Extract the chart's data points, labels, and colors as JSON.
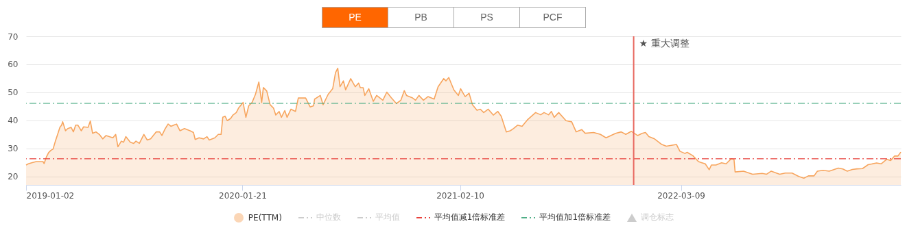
{
  "chart_data": {
    "type": "area",
    "legend": "bottom",
    "grid": "y",
    "line_style": "solid",
    "ylim": [
      17,
      70
    ],
    "yticks": [
      20,
      30,
      40,
      50,
      60,
      70
    ],
    "xlim": [
      "2019-01-02",
      "2023-04-03"
    ],
    "xticks": [
      "2019-01-02",
      "2020-01-21",
      "2021-02-10",
      "2022-03-09"
    ],
    "annotations": [
      "PE",
      "PB",
      "PS",
      "PCF",
      "中位数",
      "平均值",
      "调仓标志"
    ],
    "ref_lines": [
      {
        "axis": "y",
        "value": 26.3,
        "label": "平均值减1倍标准差",
        "color": "#e8413c",
        "line_style": "dashed"
      },
      {
        "axis": "y",
        "value": 46.1,
        "label": "平均值加1倍标准差",
        "color": "#4fae86",
        "line_style": "dashed"
      },
      {
        "axis": "x",
        "value": "2021-12-15",
        "label": "★ 重大调整",
        "color": "#e8675f",
        "line_style": "solid"
      }
    ],
    "series": [
      {
        "name": "PE(TTM)",
        "color": "#f7a55e",
        "x": [
          "2019-01-02",
          "2019-01-06",
          "2019-01-12",
          "2019-01-20",
          "2019-02-01",
          "2019-02-03",
          "2019-02-07",
          "2019-02-11",
          "2019-02-15",
          "2019-02-19",
          "2019-02-23",
          "2019-02-27",
          "2019-03-03",
          "2019-03-06",
          "2019-03-08",
          "2019-03-13",
          "2019-03-17",
          "2019-03-23",
          "2019-03-27",
          "2019-03-31",
          "2019-04-04",
          "2019-04-10",
          "2019-04-14",
          "2019-04-22",
          "2019-04-26",
          "2019-04-30",
          "2019-05-06",
          "2019-05-12",
          "2019-05-18",
          "2019-05-24",
          "2019-06-05",
          "2019-06-10",
          "2019-06-14",
          "2019-06-20",
          "2019-06-24",
          "2019-06-28",
          "2019-07-06",
          "2019-07-12",
          "2019-07-16",
          "2019-07-22",
          "2019-07-30",
          "2019-08-05",
          "2019-08-11",
          "2019-08-21",
          "2019-08-27",
          "2019-08-31",
          "2019-09-06",
          "2019-09-11",
          "2019-09-16",
          "2019-09-26",
          "2019-10-02",
          "2019-10-10",
          "2019-10-20",
          "2019-10-26",
          "2019-10-29",
          "2019-11-05",
          "2019-11-13",
          "2019-11-19",
          "2019-11-23",
          "2019-12-03",
          "2019-12-09",
          "2019-12-14",
          "2019-12-17",
          "2019-12-21",
          "2019-12-25",
          "2019-12-31",
          "2020-01-04",
          "2020-01-10",
          "2020-01-14",
          "2020-01-22",
          "2020-01-27",
          "2020-02-01",
          "2020-02-07",
          "2020-02-13",
          "2020-02-19",
          "2020-02-24",
          "2020-02-27",
          "2020-03-04",
          "2020-03-10",
          "2020-03-16",
          "2020-03-20",
          "2020-03-26",
          "2020-03-30",
          "2020-04-05",
          "2020-04-09",
          "2020-04-16",
          "2020-04-24",
          "2020-04-29",
          "2020-05-12",
          "2020-05-20",
          "2020-05-26",
          "2020-05-28",
          "2020-06-07",
          "2020-06-12",
          "2020-06-21",
          "2020-06-29",
          "2020-07-04",
          "2020-07-08",
          "2020-07-12",
          "2020-07-18",
          "2020-07-22",
          "2020-07-31",
          "2020-08-08",
          "2020-08-14",
          "2020-08-17",
          "2020-08-22",
          "2020-08-25",
          "2020-09-01",
          "2020-09-09",
          "2020-09-15",
          "2020-09-26",
          "2020-10-03",
          "2020-10-11",
          "2020-10-20",
          "2020-10-28",
          "2020-11-03",
          "2020-11-07",
          "2020-11-17",
          "2020-11-23",
          "2020-11-29",
          "2020-12-07",
          "2020-12-15",
          "2020-12-26",
          "2021-01-02",
          "2021-01-12",
          "2021-01-16",
          "2021-01-21",
          "2021-01-30",
          "2021-02-07",
          "2021-02-11",
          "2021-02-19",
          "2021-02-26",
          "2021-03-04",
          "2021-03-12",
          "2021-03-18",
          "2021-03-24",
          "2021-04-01",
          "2021-04-10",
          "2021-04-18",
          "2021-04-24",
          "2021-05-03",
          "2021-05-10",
          "2021-05-16",
          "2021-05-23",
          "2021-05-31",
          "2021-06-10",
          "2021-06-24",
          "2021-07-03",
          "2021-07-09",
          "2021-07-17",
          "2021-07-22",
          "2021-07-27",
          "2021-08-04",
          "2021-08-17",
          "2021-08-27",
          "2021-09-04",
          "2021-09-14",
          "2021-09-20",
          "2021-10-05",
          "2021-10-17",
          "2021-10-27",
          "2021-11-13",
          "2021-11-23",
          "2021-12-01",
          "2021-12-11",
          "2021-12-22",
          "2021-12-30",
          "2022-01-05",
          "2022-01-11",
          "2022-01-21",
          "2022-02-03",
          "2022-02-11",
          "2022-03-01",
          "2022-03-07",
          "2022-03-16",
          "2022-03-20",
          "2022-03-30",
          "2022-04-09",
          "2022-04-15",
          "2022-04-21",
          "2022-04-28",
          "2022-05-02",
          "2022-05-10",
          "2022-05-20",
          "2022-05-28",
          "2022-06-06",
          "2022-06-11",
          "2022-06-13",
          "2022-06-28",
          "2022-07-14",
          "2022-07-31",
          "2022-08-08",
          "2022-08-16",
          "2022-08-31",
          "2022-09-10",
          "2022-09-22",
          "2022-10-04",
          "2022-10-13",
          "2022-10-21",
          "2022-10-31",
          "2022-11-06",
          "2022-11-16",
          "2022-11-27",
          "2022-12-13",
          "2022-12-21",
          "2022-12-29",
          "2023-01-07",
          "2023-01-15",
          "2023-01-25",
          "2023-02-04",
          "2023-02-19",
          "2023-02-27",
          "2023-03-09",
          "2023-03-16",
          "2023-03-23",
          "2023-03-29",
          "2023-04-03"
        ],
        "values": [
          24.1,
          24.5,
          24.9,
          25.3,
          25.3,
          24.6,
          26.9,
          28.5,
          29.3,
          29.8,
          32.6,
          35.0,
          37.5,
          38.3,
          39.5,
          36.3,
          37.1,
          37.5,
          35.9,
          38.3,
          38.3,
          36.3,
          37.7,
          37.5,
          39.8,
          35.4,
          35.9,
          35.0,
          33.4,
          34.6,
          33.8,
          35.0,
          30.6,
          32.6,
          32.2,
          34.2,
          32.2,
          31.8,
          32.6,
          31.8,
          35.0,
          33.0,
          33.4,
          35.9,
          35.9,
          34.6,
          37.1,
          38.7,
          37.9,
          38.7,
          36.3,
          37.1,
          36.3,
          35.7,
          33.2,
          33.8,
          33.4,
          34.2,
          33.0,
          33.8,
          35.0,
          35.0,
          41.1,
          41.5,
          39.9,
          40.7,
          41.9,
          42.8,
          44.4,
          46.4,
          41.1,
          45.2,
          46.4,
          49.3,
          53.7,
          46.4,
          51.7,
          50.5,
          45.6,
          44.4,
          41.9,
          43.2,
          41.1,
          43.5,
          41.1,
          44.0,
          43.2,
          48.0,
          48.0,
          44.8,
          45.2,
          47.6,
          48.9,
          45.6,
          49.3,
          51.3,
          57.0,
          58.6,
          52.0,
          54.1,
          50.9,
          54.9,
          52.0,
          53.3,
          51.7,
          51.7,
          48.9,
          51.3,
          46.8,
          48.9,
          47.2,
          50.1,
          48.1,
          46.0,
          47.2,
          50.6,
          48.9,
          48.1,
          47.2,
          48.9,
          47.2,
          48.5,
          47.6,
          52.0,
          54.9,
          54.1,
          55.3,
          50.9,
          48.9,
          51.3,
          48.5,
          49.7,
          45.6,
          43.6,
          44.0,
          42.8,
          44.0,
          41.9,
          43.2,
          41.5,
          35.9,
          36.3,
          37.1,
          38.3,
          37.9,
          40.3,
          42.8,
          42.0,
          42.8,
          42.0,
          43.2,
          41.1,
          42.8,
          39.9,
          39.5,
          35.9,
          36.7,
          35.4,
          35.7,
          35.0,
          33.8,
          35.4,
          35.9,
          35.0,
          36.1,
          34.6,
          35.4,
          35.7,
          34.2,
          33.4,
          31.4,
          30.8,
          31.4,
          29.0,
          28.2,
          28.6,
          27.4,
          25.3,
          24.9,
          24.5,
          22.4,
          24.1,
          24.1,
          24.9,
          24.5,
          26.3,
          26.1,
          21.6,
          21.9,
          20.8,
          21.1,
          20.8,
          21.9,
          20.8,
          21.2,
          21.2,
          20.0,
          19.4,
          20.2,
          20.2,
          21.9,
          22.2,
          21.9,
          23.0,
          22.7,
          21.9,
          22.5,
          22.7,
          22.8,
          24.2,
          24.8,
          24.5,
          26.1,
          25.7,
          27.3,
          27.3,
          28.7
        ]
      }
    ]
  }
}
